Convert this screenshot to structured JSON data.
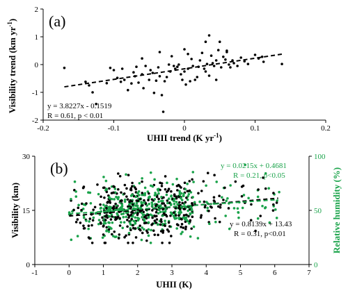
{
  "chart_data": [
    {
      "type": "scatter",
      "panel_label": "(a)",
      "xlabel": "UHII trend (K yr",
      "xlabel_sup": "-1",
      "xlabel_tail": ")",
      "ylabel": "Visibility trend (km yr",
      "ylabel_sup": "-1",
      "ylabel_tail": ")",
      "xlim": [
        -0.2,
        0.2
      ],
      "ylim": [
        -2,
        2
      ],
      "xticks": [
        -0.2,
        -0.1,
        0,
        0.1,
        0.2
      ],
      "xtick_labels": [
        "-0.2",
        "-0.1",
        "0",
        "0.1",
        "0.2"
      ],
      "yticks": [
        -2,
        -1,
        0,
        1,
        2
      ],
      "ytick_labels": [
        "-2",
        "-1",
        "0",
        "1",
        "2"
      ],
      "grid": false,
      "series": [
        {
          "color": "#000000",
          "points": [
            [
              -0.17,
              -0.12
            ],
            [
              -0.14,
              -0.62
            ],
            [
              -0.135,
              -0.75
            ],
            [
              -0.13,
              -1.0
            ],
            [
              -0.125,
              -1.42
            ],
            [
              -0.11,
              -0.67
            ],
            [
              -0.105,
              -0.12
            ],
            [
              -0.1,
              -0.2
            ],
            [
              -0.095,
              -0.48
            ],
            [
              -0.09,
              -0.62
            ],
            [
              -0.088,
              -0.15
            ],
            [
              -0.085,
              -0.55
            ],
            [
              -0.08,
              -0.92
            ],
            [
              -0.075,
              -0.68
            ],
            [
              -0.072,
              -0.28
            ],
            [
              -0.07,
              -0.42
            ],
            [
              -0.068,
              -0.08
            ],
            [
              -0.065,
              -0.65
            ],
            [
              -0.06,
              -0.35
            ],
            [
              -0.058,
              -0.85
            ],
            [
              -0.055,
              -0.05
            ],
            [
              -0.05,
              -0.55
            ],
            [
              -0.048,
              -0.2
            ],
            [
              -0.045,
              -0.3
            ],
            [
              -0.043,
              -1.02
            ],
            [
              -0.04,
              -0.58
            ],
            [
              -0.037,
              -0.1
            ],
            [
              -0.035,
              -0.42
            ],
            [
              -0.032,
              -1.1
            ],
            [
              -0.03,
              -1.7
            ],
            [
              -0.028,
              -0.6
            ],
            [
              -0.025,
              -0.45
            ],
            [
              -0.022,
              0.0
            ],
            [
              -0.02,
              -0.25
            ],
            [
              -0.018,
              0.3
            ],
            [
              -0.015,
              -0.05
            ],
            [
              -0.013,
              -0.15
            ],
            [
              -0.01,
              -0.08
            ],
            [
              -0.008,
              0.0
            ],
            [
              -0.005,
              -0.35
            ],
            [
              -0.003,
              -0.55
            ],
            [
              0.0,
              -0.25
            ],
            [
              0.002,
              -0.72
            ],
            [
              0.005,
              -0.15
            ],
            [
              0.008,
              -0.6
            ],
            [
              0.01,
              0.2
            ],
            [
              0.012,
              -0.05
            ],
            [
              0.015,
              -0.55
            ],
            [
              0.018,
              -0.45
            ],
            [
              0.02,
              -0.08
            ],
            [
              0.022,
              0.15
            ],
            [
              0.025,
              0.42
            ],
            [
              0.028,
              -0.15
            ],
            [
              0.03,
              -0.25
            ],
            [
              0.032,
              0.02
            ],
            [
              0.035,
              -0.4
            ],
            [
              0.038,
              0.32
            ],
            [
              0.04,
              0.05
            ],
            [
              0.042,
              -0.05
            ],
            [
              0.045,
              0.15
            ],
            [
              0.048,
              0.52
            ],
            [
              0.05,
              0.82
            ],
            [
              0.052,
              -0.1
            ],
            [
              0.055,
              0.28
            ],
            [
              0.058,
              0.18
            ],
            [
              0.06,
              0.45
            ],
            [
              0.063,
              0.0
            ],
            [
              0.065,
              -0.1
            ],
            [
              0.068,
              0.15
            ],
            [
              0.07,
              0.05
            ],
            [
              0.075,
              -0.05
            ],
            [
              0.08,
              0.25
            ],
            [
              0.085,
              0.12
            ],
            [
              0.09,
              0.02
            ],
            [
              0.1,
              0.35
            ],
            [
              0.105,
              0.22
            ],
            [
              0.11,
              0.28
            ],
            [
              0.112,
              0.1
            ],
            [
              0.138,
              0.02
            ],
            [
              0.0,
              0.55
            ],
            [
              0.005,
              0.38
            ],
            [
              0.03,
              0.82
            ],
            [
              0.035,
              1.05
            ],
            [
              0.06,
              0.5
            ],
            [
              -0.035,
              0.45
            ],
            [
              -0.06,
              0.22
            ],
            [
              0.045,
              -0.55
            ]
          ]
        }
      ],
      "fit": {
        "slope": 3.8227,
        "intercept": -0.1519,
        "x_range": [
          -0.17,
          0.14
        ],
        "equation": "y = 3.8227x - 0.1519",
        "stats": "R = 0.61, p < 0.01"
      }
    },
    {
      "type": "scatter",
      "panel_label": "(b)",
      "xlabel": "UHII (K)",
      "ylabel": "Visibility (km)",
      "ylabel_right": "Relative humidity (%)",
      "xlim": [
        -1,
        7
      ],
      "ylim": [
        0,
        30
      ],
      "ylim_right": [
        0,
        100
      ],
      "xticks": [
        -1,
        0,
        1,
        2,
        3,
        4,
        5,
        6,
        7
      ],
      "xtick_labels": [
        "-1",
        "0",
        "1",
        "2",
        "3",
        "4",
        "5",
        "6",
        "7"
      ],
      "yticks": [
        0,
        15,
        30
      ],
      "ytick_labels": [
        "0",
        "15",
        "30"
      ],
      "yticks_right": [
        0,
        50,
        100
      ],
      "ytick_labels_right": [
        "0",
        "50",
        "100"
      ],
      "grid": false,
      "series": [
        {
          "axis": "left",
          "color": "#000000",
          "count": 380,
          "x_range": [
            0.0,
            6.2
          ],
          "slope": 0.8139,
          "intercept": 13.43,
          "spread": 4.2,
          "seed": 7
        },
        {
          "axis": "right",
          "color": "#1aa34a",
          "count": 400,
          "x_range": [
            0.0,
            6.2
          ],
          "slope": 0.0215,
          "intercept": 0.4681,
          "spread": 0.12,
          "scale": 100,
          "seed": 13
        }
      ],
      "fits": [
        {
          "axis": "left",
          "slope": 0.8139,
          "intercept": 13.43,
          "x_range": [
            0.0,
            6.1
          ],
          "color": "#000000",
          "equation": "y = 0.8139x + 13.43",
          "stats": "R = 0.31, p<0.01"
        },
        {
          "axis": "right",
          "slope": 0.0215,
          "intercept": 0.4681,
          "scale": 100,
          "x_range": [
            0.0,
            6.1
          ],
          "color": "#1aa34a",
          "equation": "y = 0.0215x + 0.4681",
          "stats": "R = 0.21, p<0.05"
        }
      ]
    }
  ]
}
